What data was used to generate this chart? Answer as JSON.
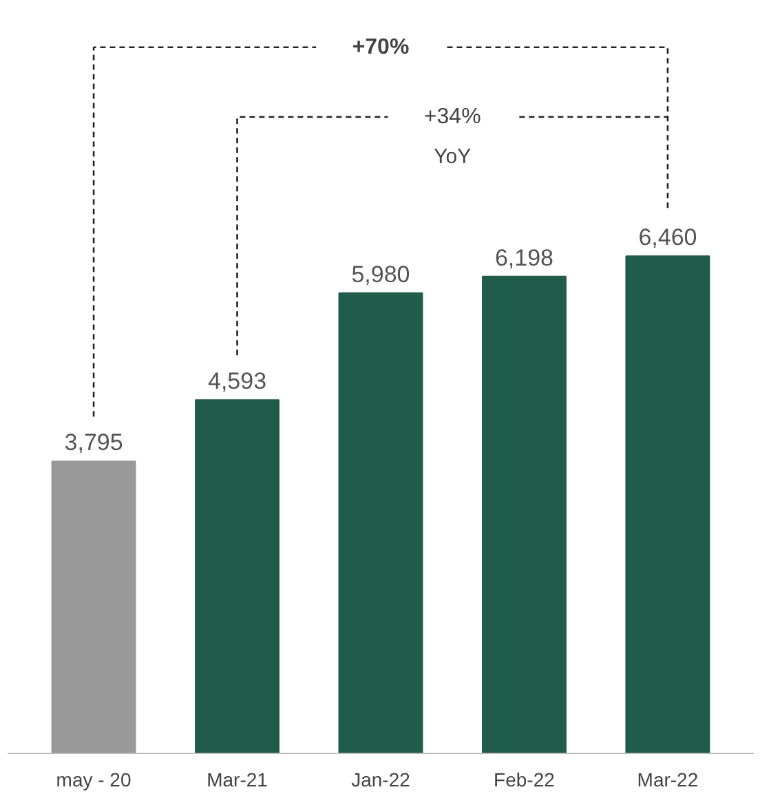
{
  "chart_data": {
    "type": "bar",
    "categories": [
      "may - 20",
      "Mar-21",
      "Jan-22",
      "Feb-22",
      "Mar-22"
    ],
    "values": [
      3795,
      4593,
      5980,
      6198,
      6460
    ],
    "value_labels": [
      "3,795",
      "4,593",
      "5,980",
      "6,198",
      "6,460"
    ],
    "colors": [
      "#999999",
      "#1f5c4a",
      "#1f5c4a",
      "#1f5c4a",
      "#1f5c4a"
    ],
    "annotations": [
      "+70%",
      "+34%",
      "YoY"
    ]
  }
}
